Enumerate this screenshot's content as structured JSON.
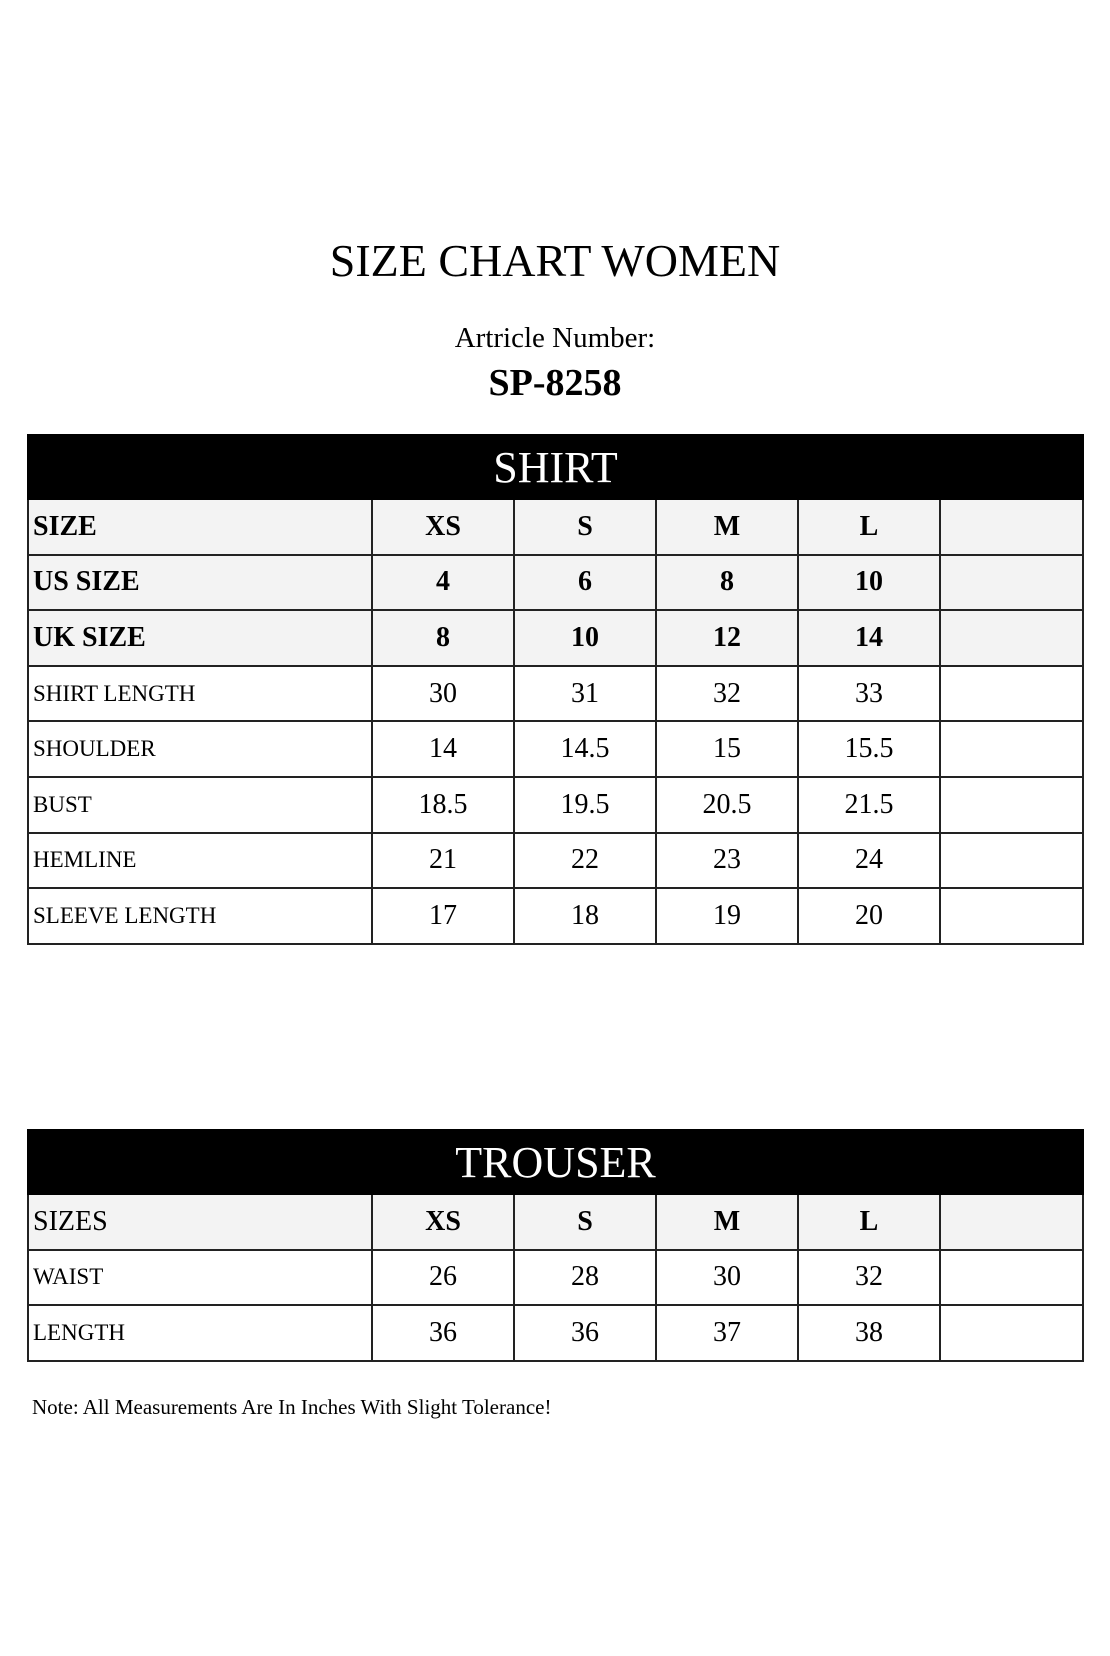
{
  "title": "SIZE CHART WOMEN",
  "article_label": "Artricle Number:",
  "article_number": "SP-8258",
  "shirt": {
    "heading": "SHIRT",
    "header_rows": [
      {
        "label": "SIZE",
        "values": [
          "XS",
          "S",
          "M",
          "L",
          ""
        ]
      },
      {
        "label": "US SIZE",
        "values": [
          "4",
          "6",
          "8",
          "10",
          ""
        ]
      },
      {
        "label": "UK SIZE",
        "values": [
          "8",
          "10",
          "12",
          "14",
          ""
        ]
      }
    ],
    "rows": [
      {
        "label": "SHIRT LENGTH",
        "values": [
          "30",
          "31",
          "32",
          "33",
          ""
        ]
      },
      {
        "label": "SHOULDER",
        "values": [
          "14",
          "14.5",
          "15",
          "15.5",
          ""
        ]
      },
      {
        "label": "BUST",
        "values": [
          "18.5",
          "19.5",
          "20.5",
          "21.5",
          ""
        ]
      },
      {
        "label": "HEMLINE",
        "values": [
          "21",
          "22",
          "23",
          "24",
          ""
        ]
      },
      {
        "label": "SLEEVE LENGTH",
        "values": [
          "17",
          "18",
          "19",
          "20",
          ""
        ]
      }
    ]
  },
  "trouser": {
    "heading": "TROUSER",
    "header_rows": [
      {
        "label": "SIZES",
        "values": [
          "XS",
          "S",
          "M",
          "L",
          ""
        ]
      }
    ],
    "rows": [
      {
        "label": "WAIST",
        "values": [
          "26",
          "28",
          "30",
          "32",
          ""
        ]
      },
      {
        "label": "LENGTH",
        "values": [
          "36",
          "36",
          "37",
          "38",
          ""
        ]
      }
    ]
  },
  "note": "Note: All Measurements Are In Inches With Slight Tolerance!"
}
